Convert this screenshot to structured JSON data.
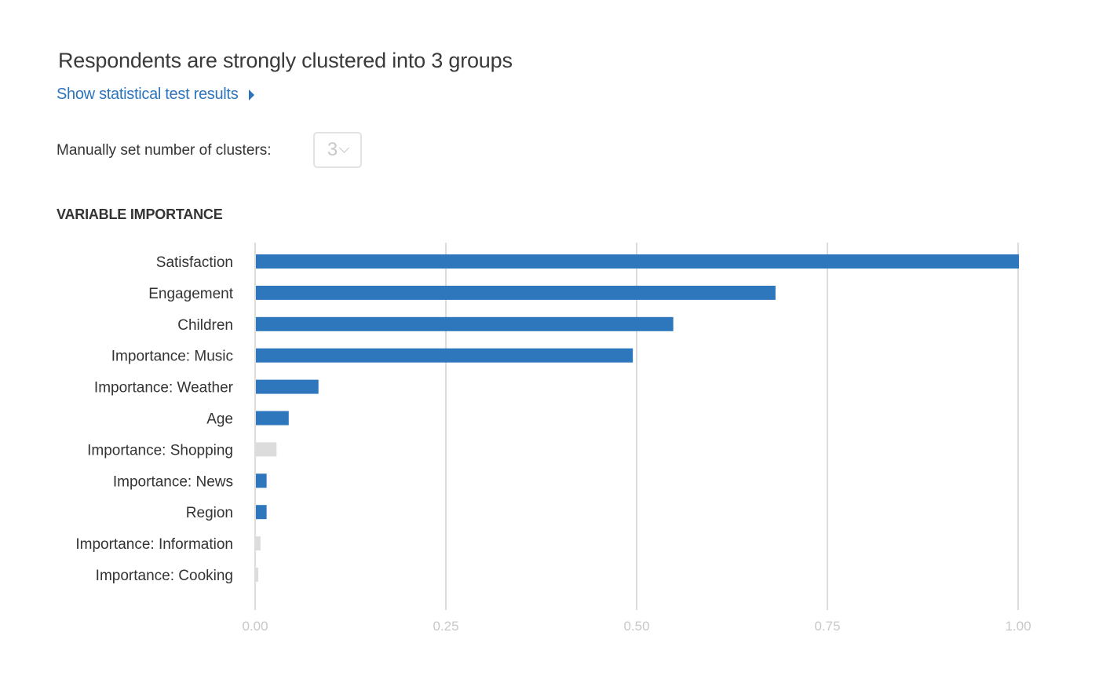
{
  "title": "Respondents are strongly clustered into 3 groups",
  "show_results_link": "Show statistical test results",
  "clusters": {
    "label": "Manually set number of clusters:",
    "selected": "3"
  },
  "section_heading": "VARIABLE IMPORTANCE",
  "colors": {
    "significant": "#2e77bd",
    "not_significant": "#dcdcdc",
    "gridline": "#dcdcdc",
    "link": "#2e74bb"
  },
  "chart_data": {
    "type": "bar",
    "orientation": "horizontal",
    "categories": [
      "Satisfaction",
      "Engagement",
      "Children",
      "Importance: Music",
      "Importance: Weather",
      "Age",
      "Importance: Shopping",
      "Importance: News",
      "Region",
      "Importance: Information",
      "Importance: Cooking"
    ],
    "values": [
      1.0,
      0.681,
      0.547,
      0.494,
      0.082,
      0.043,
      0.027,
      0.014,
      0.014,
      0.006,
      0.003
    ],
    "significant": [
      true,
      true,
      true,
      true,
      true,
      true,
      false,
      true,
      true,
      false,
      false
    ],
    "xlim": [
      0,
      1
    ],
    "ticks": [
      "0.00",
      "0.25",
      "0.50",
      "0.75",
      "1.00"
    ],
    "grid": true,
    "xlabel": "",
    "ylabel": ""
  }
}
